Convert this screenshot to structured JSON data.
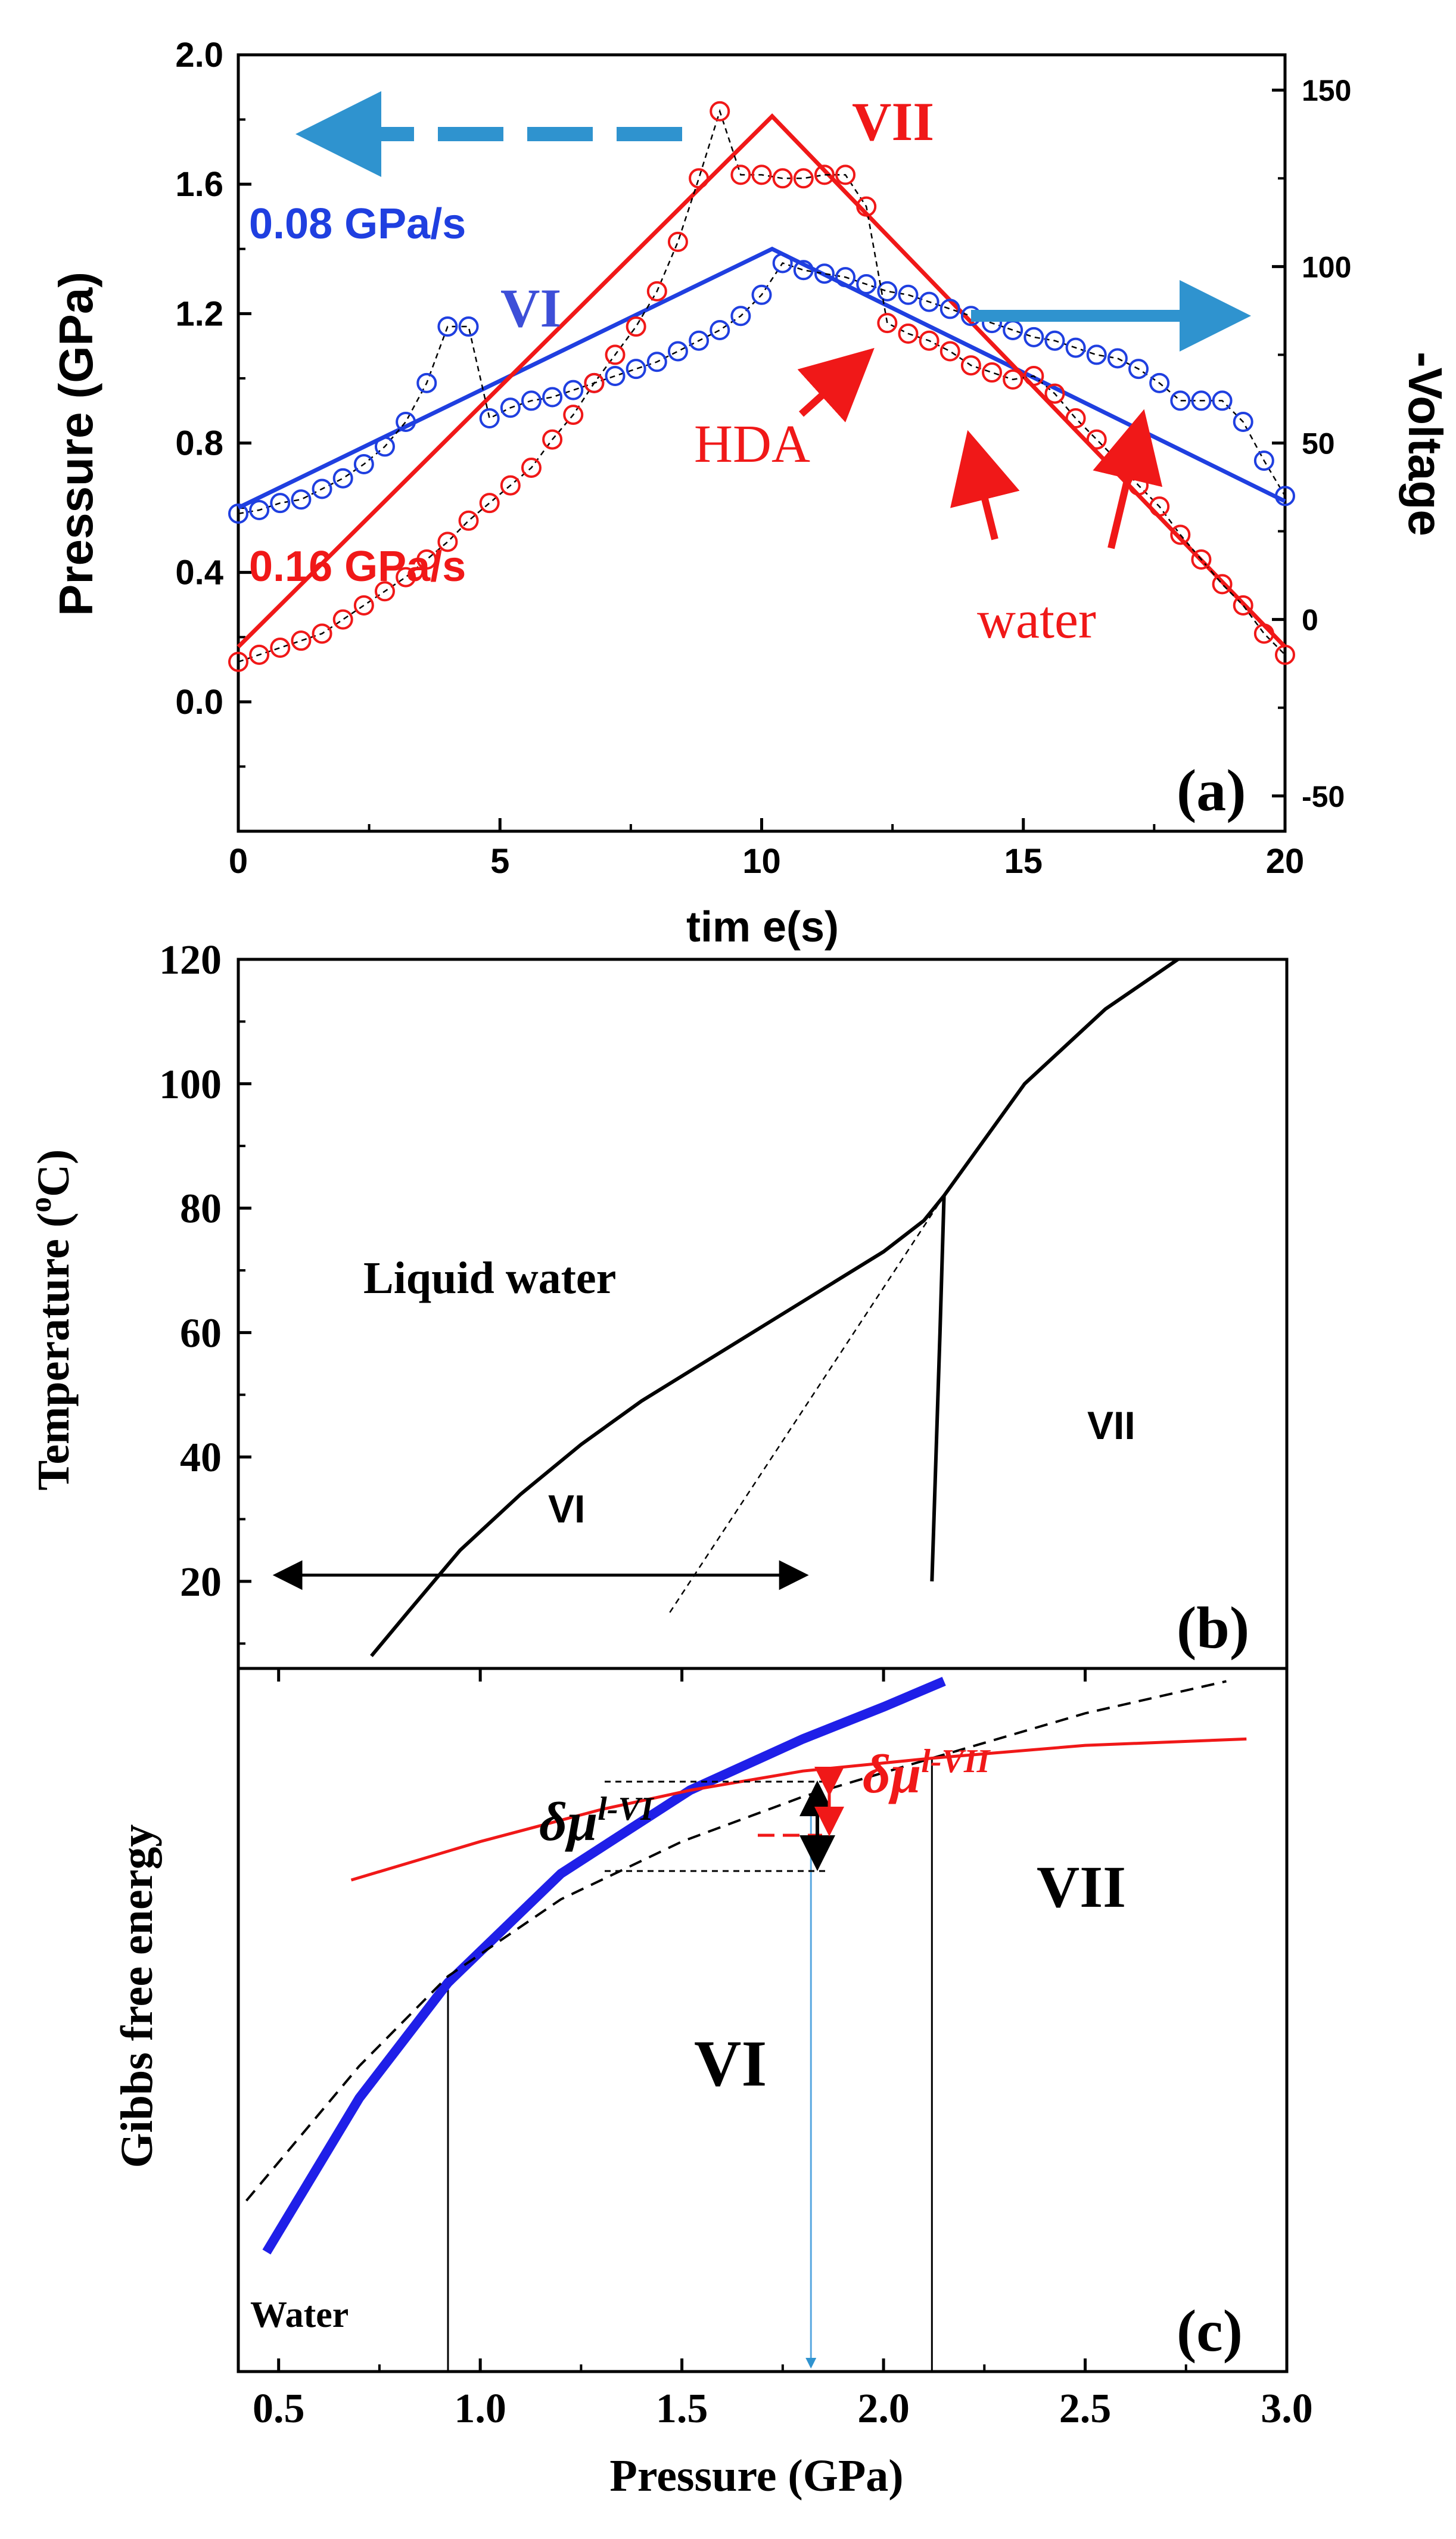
{
  "figure": {
    "panels": [
      "(a)",
      "(b)",
      "(c)"
    ]
  },
  "chart_data": [
    {
      "type": "line",
      "panel": "(a)",
      "xlabel": "tim e(s)",
      "ylabel": "Pressure (GPa)",
      "y2label": "-Voltage",
      "xlim": [
        0,
        20
      ],
      "ylim": [
        -0.4,
        2.0
      ],
      "y2lim": [
        -60,
        160
      ],
      "xticks": [
        "0",
        "5",
        "10",
        "15",
        "20"
      ],
      "yticks": [
        "0.0",
        "0.4",
        "0.8",
        "1.2",
        "1.6",
        "2.0"
      ],
      "y2ticks": [
        "-50",
        "0",
        "50",
        "100",
        "150"
      ],
      "series": [
        {
          "name": "0.08 GPa/s",
          "color": "#1f3fe0",
          "axis": "left",
          "style": "solid",
          "x": [
            0,
            10.2,
            20
          ],
          "y": [
            0.6,
            1.4,
            0.62
          ]
        },
        {
          "name": "0.16 GPa/s",
          "color": "#f01818",
          "axis": "left",
          "style": "solid",
          "x": [
            0,
            10.2,
            20
          ],
          "y": [
            0.17,
            1.81,
            0.17
          ]
        },
        {
          "name": "voltage 0.08 GPa/s",
          "color": "#1f3fe0",
          "axis": "right",
          "style": "circles",
          "x": [
            0,
            0.4,
            0.8,
            1.2,
            1.6,
            2,
            2.4,
            2.8,
            3.2,
            3.6,
            4,
            4.4,
            4.8,
            5.2,
            5.6,
            6,
            6.4,
            6.8,
            7.2,
            7.6,
            8,
            8.4,
            8.8,
            9.2,
            9.6,
            10,
            10.4,
            10.8,
            11.2,
            11.6,
            12,
            12.4,
            12.8,
            13.2,
            13.6,
            14,
            14.4,
            14.8,
            15.2,
            15.6,
            16,
            16.4,
            16.8,
            17.2,
            17.6,
            18,
            18.4,
            18.8,
            19.2,
            19.6,
            20
          ],
          "y": [
            30,
            31,
            33,
            34,
            37,
            40,
            44,
            49,
            56,
            67,
            83,
            83,
            57,
            60,
            62,
            63,
            65,
            67,
            69,
            71,
            73,
            76,
            79,
            82,
            86,
            92,
            101,
            99,
            98,
            97,
            95,
            93,
            92,
            90,
            88,
            86,
            84,
            82,
            80,
            79,
            77,
            75,
            74,
            71,
            67,
            62,
            62,
            62,
            56,
            45,
            35
          ]
        },
        {
          "name": "voltage 0.16 GPa/s",
          "color": "#f01818",
          "axis": "right",
          "style": "circles",
          "x": [
            0,
            0.4,
            0.8,
            1.2,
            1.6,
            2,
            2.4,
            2.8,
            3.2,
            3.6,
            4,
            4.4,
            4.8,
            5.2,
            5.6,
            6,
            6.4,
            6.8,
            7.2,
            7.6,
            8,
            8.4,
            8.8,
            9.2,
            9.6,
            10,
            10.4,
            10.8,
            11.2,
            11.6,
            12,
            12.4,
            12.8,
            13.2,
            13.6,
            14,
            14.4,
            14.8,
            15.2,
            15.6,
            16,
            16.4,
            16.8,
            17.2,
            17.6,
            18,
            18.4,
            18.8,
            19.2,
            19.6,
            20
          ],
          "y": [
            -12,
            -10,
            -8,
            -6,
            -4,
            0,
            4,
            8,
            12,
            17,
            22,
            28,
            33,
            38,
            43,
            51,
            58,
            67,
            75,
            83,
            93,
            107,
            125,
            144,
            126,
            126,
            125,
            125,
            126,
            126,
            117,
            84,
            81,
            79,
            76,
            72,
            70,
            68,
            69,
            64,
            57,
            51,
            45,
            38,
            32,
            24,
            17,
            10,
            4,
            -4,
            -10
          ]
        }
      ],
      "annotations": [
        "VII",
        "0.08 GPa/s",
        "VI",
        "HDA",
        "0.16 GPa/s",
        "water",
        "(a)"
      ]
    },
    {
      "type": "line",
      "panel": "(b)",
      "xlabel": "",
      "ylabel": "Temperature (°C)",
      "ylabel_parts": [
        "Temperature (",
        "o",
        "C)"
      ],
      "xlim": [
        0.4,
        3.0
      ],
      "ylim": [
        6,
        120
      ],
      "yticks": [
        "20",
        "40",
        "60",
        "80",
        "100",
        "120"
      ],
      "series": [
        {
          "name": "liquid-VI boundary",
          "color": "#000000",
          "style": "solid",
          "x": [
            0.73,
            0.82,
            0.95,
            1.1,
            1.25,
            1.4,
            1.55,
            1.7,
            1.85,
            2.0,
            2.1,
            2.15
          ],
          "y": [
            8,
            15,
            25,
            34,
            42,
            49,
            55,
            61,
            67,
            73,
            78,
            82
          ]
        },
        {
          "name": "VI-VII boundary",
          "color": "#000000",
          "style": "solid",
          "x": [
            2.12,
            2.13,
            2.14,
            2.15
          ],
          "y": [
            20,
            40,
            60,
            82
          ]
        },
        {
          "name": "liquid-VII boundary",
          "color": "#000000",
          "style": "solid",
          "x": [
            2.15,
            2.35,
            2.55,
            2.73
          ],
          "y": [
            82,
            100,
            112,
            120
          ]
        },
        {
          "name": "metastable extension",
          "color": "#000000",
          "style": "dashed",
          "x": [
            1.47,
            2.15
          ],
          "y": [
            15,
            82
          ]
        },
        {
          "name": "pressure range",
          "color": "#000000",
          "style": "double-arrow",
          "x": [
            0.5,
            1.8
          ],
          "y": [
            21,
            21
          ]
        }
      ],
      "annotations": [
        "Liquid water",
        "VI",
        "VII",
        "(b)"
      ]
    },
    {
      "type": "line",
      "panel": "(c)",
      "xlabel": "Pressure (GPa)",
      "ylabel": "Gibbs free energy",
      "xlim": [
        0.4,
        3.0
      ],
      "ylim": [
        0,
        1
      ],
      "xticks": [
        "0.5",
        "1.0",
        "1.5",
        "2.0",
        "2.5",
        "3.0"
      ],
      "series": [
        {
          "name": "G of water",
          "color": "#1f1fe8",
          "style": "thick",
          "x": [
            0.47,
            0.7,
            0.92,
            1.2,
            1.52,
            1.8,
            2.0,
            2.15
          ],
          "y": [
            0.14,
            0.38,
            0.56,
            0.73,
            0.86,
            0.94,
            0.99,
            1.03
          ]
        },
        {
          "name": "G of ice VI",
          "color": "#000000",
          "style": "dashed",
          "x": [
            0.42,
            0.7,
            0.92,
            1.2,
            1.5,
            1.8,
            2.12,
            2.5,
            2.85
          ],
          "y": [
            0.22,
            0.43,
            0.57,
            0.69,
            0.78,
            0.85,
            0.91,
            0.98,
            1.03
          ]
        },
        {
          "name": "G of ice VII",
          "color": "#f01818",
          "style": "solid",
          "x": [
            0.68,
            1.0,
            1.3,
            1.52,
            1.8,
            2.12,
            2.5,
            2.9
          ],
          "y": [
            0.72,
            0.78,
            0.83,
            0.86,
            0.89,
            0.91,
            0.93,
            0.94
          ]
        }
      ],
      "markers_x": [
        0.92,
        1.82,
        2.12
      ],
      "annotations": [
        "δμ",
        "l-VI",
        "δμ",
        "l-VII",
        "VII",
        "VI",
        "Water",
        "(c)"
      ]
    }
  ]
}
